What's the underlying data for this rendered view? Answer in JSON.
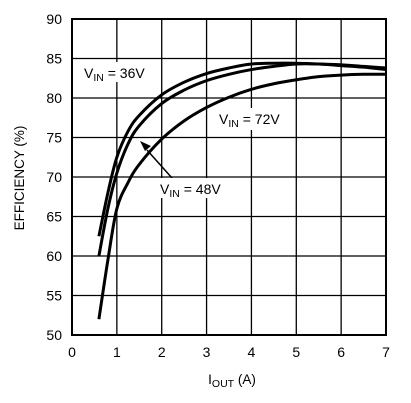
{
  "chart_data": {
    "type": "line",
    "xlabel_main": "I",
    "xlabel_sub": "OUT",
    "xlabel_unit": " (A)",
    "ylabel": "EFFICIENCY (%)",
    "xlim": [
      0,
      7
    ],
    "ylim": [
      50,
      90
    ],
    "xticks": [
      0,
      1,
      2,
      3,
      4,
      5,
      6,
      7
    ],
    "yticks": [
      50,
      55,
      60,
      65,
      70,
      75,
      80,
      85,
      90
    ],
    "grid": true,
    "series": [
      {
        "name_main": "V",
        "name_sub": "IN",
        "name_value": " = 36V",
        "x": [
          0.6,
          0.8,
          1.0,
          1.25,
          1.5,
          2.0,
          2.5,
          3.0,
          3.5,
          4.0,
          4.5,
          5.0,
          5.5,
          6.0,
          6.5,
          7.0
        ],
        "y": [
          62.5,
          68.0,
          72.5,
          75.8,
          77.8,
          80.4,
          82.0,
          83.1,
          83.8,
          84.3,
          84.4,
          84.4,
          84.3,
          84.2,
          84.0,
          83.8
        ]
      },
      {
        "name_main": "V",
        "name_sub": "IN",
        "name_value": " = 48V",
        "x": [
          0.6,
          0.8,
          1.0,
          1.25,
          1.5,
          2.0,
          2.5,
          3.0,
          3.5,
          4.0,
          4.5,
          5.0,
          5.5,
          6.0,
          6.5,
          7.0
        ],
        "y": [
          60.0,
          66.0,
          70.5,
          74.2,
          76.5,
          79.3,
          81.0,
          82.2,
          83.0,
          83.6,
          84.0,
          84.3,
          84.3,
          84.1,
          83.9,
          83.6
        ]
      },
      {
        "name_main": "V",
        "name_sub": "IN",
        "name_value": " = 72V",
        "x": [
          0.6,
          0.8,
          1.0,
          1.25,
          1.5,
          2.0,
          2.5,
          3.0,
          3.5,
          4.0,
          4.5,
          5.0,
          5.5,
          6.0,
          6.5,
          7.0
        ],
        "y": [
          52.0,
          59.5,
          66.0,
          69.3,
          71.6,
          74.8,
          77.1,
          78.8,
          80.1,
          81.1,
          81.8,
          82.3,
          82.7,
          82.9,
          83.0,
          83.0
        ]
      }
    ]
  }
}
